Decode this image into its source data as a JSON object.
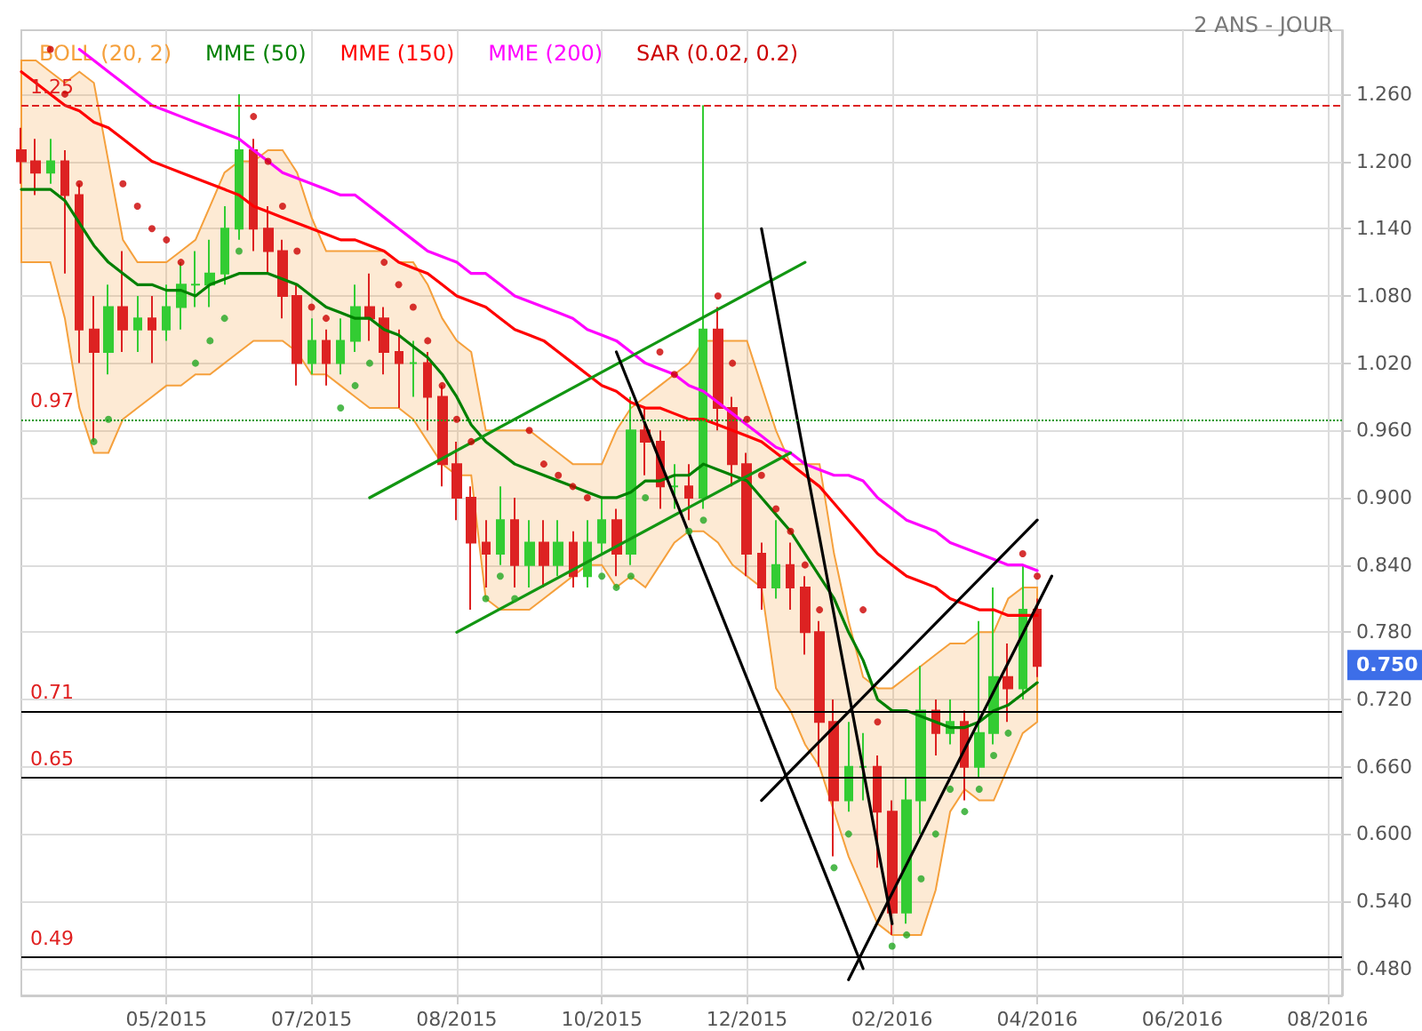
{
  "chart_data": {
    "type": "candlestick",
    "subtitle": "2 ANS - JOUR",
    "categories": [
      null,
      null,
      null,
      null,
      null,
      null,
      null,
      null,
      null,
      null,
      "05/2015",
      null,
      null,
      null,
      null,
      null,
      null,
      null,
      null,
      null,
      "07/2015",
      null,
      null,
      null,
      null,
      null,
      null,
      null,
      null,
      null,
      "08/2015",
      null,
      null,
      null,
      null,
      null,
      null,
      null,
      null,
      null,
      "10/2015",
      null,
      null,
      null,
      null,
      null,
      null,
      null,
      null,
      null,
      "12/2015",
      null,
      null,
      null,
      null,
      null,
      null,
      null,
      null,
      null,
      "02/2016",
      null,
      null,
      null,
      null,
      null,
      null,
      null,
      null,
      null,
      "04/2016",
      null,
      null,
      null,
      null,
      null,
      null,
      null,
      null,
      null,
      "06/2016",
      null,
      null,
      null,
      null,
      null,
      null,
      null,
      null,
      null,
      "08/2016",
      null
    ],
    "ohlc": [
      [
        1.21,
        1.23,
        1.18,
        1.2
      ],
      [
        1.2,
        1.22,
        1.17,
        1.19
      ],
      [
        1.19,
        1.22,
        1.18,
        1.2
      ],
      [
        1.2,
        1.21,
        1.1,
        1.17
      ],
      [
        1.17,
        1.18,
        1.02,
        1.05
      ],
      [
        1.05,
        1.08,
        0.95,
        1.03
      ],
      [
        1.03,
        1.09,
        1.01,
        1.07
      ],
      [
        1.07,
        1.12,
        1.03,
        1.05
      ],
      [
        1.05,
        1.08,
        1.03,
        1.06
      ],
      [
        1.06,
        1.08,
        1.02,
        1.05
      ],
      [
        1.05,
        1.09,
        1.04,
        1.07
      ],
      [
        1.07,
        1.11,
        1.05,
        1.09
      ],
      [
        1.09,
        1.12,
        1.07,
        1.09
      ],
      [
        1.09,
        1.13,
        1.07,
        1.1
      ],
      [
        1.1,
        1.16,
        1.09,
        1.14
      ],
      [
        1.14,
        1.26,
        1.13,
        1.21
      ],
      [
        1.21,
        1.22,
        1.12,
        1.14
      ],
      [
        1.14,
        1.16,
        1.1,
        1.12
      ],
      [
        1.12,
        1.13,
        1.06,
        1.08
      ],
      [
        1.08,
        1.09,
        1.0,
        1.02
      ],
      [
        1.02,
        1.06,
        1.01,
        1.04
      ],
      [
        1.04,
        1.05,
        1.0,
        1.02
      ],
      [
        1.02,
        1.06,
        1.01,
        1.04
      ],
      [
        1.04,
        1.09,
        1.03,
        1.07
      ],
      [
        1.07,
        1.1,
        1.04,
        1.06
      ],
      [
        1.06,
        1.07,
        1.01,
        1.03
      ],
      [
        1.03,
        1.05,
        0.98,
        1.02
      ],
      [
        1.02,
        1.04,
        0.99,
        1.02
      ],
      [
        1.02,
        1.03,
        0.96,
        0.99
      ],
      [
        0.99,
        1.0,
        0.91,
        0.93
      ],
      [
        0.93,
        0.95,
        0.88,
        0.9
      ],
      [
        0.9,
        0.91,
        0.8,
        0.86
      ],
      [
        0.86,
        0.88,
        0.82,
        0.85
      ],
      [
        0.85,
        0.91,
        0.84,
        0.88
      ],
      [
        0.88,
        0.9,
        0.82,
        0.84
      ],
      [
        0.84,
        0.88,
        0.82,
        0.86
      ],
      [
        0.86,
        0.88,
        0.82,
        0.84
      ],
      [
        0.84,
        0.88,
        0.83,
        0.86
      ],
      [
        0.86,
        0.87,
        0.82,
        0.83
      ],
      [
        0.83,
        0.88,
        0.82,
        0.86
      ],
      [
        0.86,
        0.9,
        0.85,
        0.88
      ],
      [
        0.88,
        0.89,
        0.83,
        0.85
      ],
      [
        0.85,
        0.99,
        0.84,
        0.96
      ],
      [
        0.96,
        0.98,
        0.92,
        0.95
      ],
      [
        0.95,
        0.96,
        0.89,
        0.91
      ],
      [
        0.91,
        0.93,
        0.89,
        0.91
      ],
      [
        0.91,
        0.93,
        0.88,
        0.9
      ],
      [
        0.9,
        1.25,
        0.89,
        1.05
      ],
      [
        1.05,
        1.07,
        0.96,
        0.98
      ],
      [
        0.98,
        0.99,
        0.91,
        0.93
      ],
      [
        0.93,
        0.94,
        0.83,
        0.85
      ],
      [
        0.85,
        0.86,
        0.8,
        0.82
      ],
      [
        0.82,
        0.88,
        0.81,
        0.84
      ],
      [
        0.84,
        0.86,
        0.8,
        0.82
      ],
      [
        0.82,
        0.83,
        0.76,
        0.78
      ],
      [
        0.78,
        0.79,
        0.66,
        0.7
      ],
      [
        0.7,
        0.72,
        0.58,
        0.63
      ],
      [
        0.63,
        0.7,
        0.62,
        0.66
      ],
      [
        0.66,
        0.69,
        0.63,
        0.66
      ],
      [
        0.66,
        0.67,
        0.57,
        0.62
      ],
      [
        0.62,
        0.63,
        0.51,
        0.53
      ],
      [
        0.53,
        0.65,
        0.52,
        0.63
      ],
      [
        0.63,
        0.75,
        0.6,
        0.71
      ],
      [
        0.71,
        0.72,
        0.67,
        0.69
      ],
      [
        0.69,
        0.72,
        0.68,
        0.7
      ],
      [
        0.7,
        0.71,
        0.63,
        0.66
      ],
      [
        0.66,
        0.79,
        0.65,
        0.69
      ],
      [
        0.69,
        0.82,
        0.68,
        0.74
      ],
      [
        0.74,
        0.77,
        0.7,
        0.73
      ],
      [
        0.73,
        0.84,
        0.72,
        0.8
      ],
      [
        0.8,
        0.81,
        0.74,
        0.75
      ],
      null,
      null,
      null,
      null,
      null,
      null,
      null,
      null,
      null,
      null,
      null,
      null,
      null,
      null,
      null,
      null,
      null,
      null,
      null,
      null,
      null
    ],
    "colors": [
      "#dd2222",
      "#dd2222",
      "#33cc33",
      "#dd2222",
      "#dd2222",
      "#dd2222",
      "#33cc33",
      "#dd2222",
      "#33cc33",
      "#dd2222",
      "#33cc33",
      "#33cc33",
      "#33cc33",
      "#33cc33",
      "#33cc33",
      "#33cc33",
      "#dd2222",
      "#dd2222",
      "#dd2222",
      "#dd2222",
      "#33cc33",
      "#dd2222",
      "#33cc33",
      "#33cc33",
      "#dd2222",
      "#dd2222",
      "#dd2222",
      "#33cc33",
      "#dd2222",
      "#dd2222",
      "#dd2222",
      "#dd2222",
      "#dd2222",
      "#33cc33",
      "#dd2222",
      "#33cc33",
      "#dd2222",
      "#33cc33",
      "#dd2222",
      "#33cc33",
      "#33cc33",
      "#dd2222",
      "#33cc33",
      "#dd2222",
      "#dd2222",
      "#33cc33",
      "#dd2222",
      "#33cc33",
      "#dd2222",
      "#dd2222",
      "#dd2222",
      "#dd2222",
      "#33cc33",
      "#dd2222",
      "#dd2222",
      "#dd2222",
      "#dd2222",
      "#33cc33",
      "#33cc33",
      "#dd2222",
      "#dd2222",
      "#33cc33",
      "#33cc33",
      "#dd2222",
      "#33cc33",
      "#dd2222",
      "#33cc33",
      "#33cc33",
      "#dd2222",
      "#33cc33",
      "#dd2222",
      null,
      null,
      null,
      null,
      null,
      null,
      null,
      null,
      null,
      null,
      null,
      null,
      null,
      null,
      null,
      null,
      null,
      null,
      null,
      null,
      null
    ],
    "series": [
      {
        "name": "BOLL (20, 2)",
        "type": "line",
        "color": "#f5a03c",
        "values": [
          null,
          null,
          null,
          null,
          null,
          null,
          null,
          null,
          null,
          null,
          null,
          null,
          null,
          null,
          null,
          null,
          null,
          null,
          null,
          null,
          null,
          null,
          null,
          null,
          null,
          null,
          null,
          null,
          null,
          null,
          null,
          null,
          null,
          null,
          null,
          null,
          null,
          null,
          null,
          null,
          null,
          null,
          null,
          null,
          null,
          null,
          null,
          null,
          null,
          null,
          null,
          null,
          null,
          null,
          null,
          null,
          null,
          null,
          null,
          null,
          null,
          null,
          null,
          null,
          null,
          null,
          null,
          null,
          null,
          null,
          null,
          null,
          null,
          null,
          null,
          null,
          null,
          null,
          null,
          null,
          null,
          null,
          null,
          null,
          null,
          null,
          null,
          null,
          null,
          null,
          null,
          null
        ],
        "upper": [
          1.29,
          1.29,
          1.28,
          1.27,
          1.28,
          1.27,
          1.2,
          1.13,
          1.11,
          1.11,
          1.11,
          1.12,
          1.13,
          1.16,
          1.19,
          1.2,
          1.2,
          1.21,
          1.21,
          1.19,
          1.15,
          1.12,
          1.12,
          1.12,
          1.12,
          1.12,
          1.11,
          1.11,
          1.09,
          1.06,
          1.04,
          1.03,
          0.96,
          0.96,
          0.96,
          0.96,
          0.95,
          0.94,
          0.93,
          0.93,
          0.93,
          0.96,
          0.98,
          0.99,
          1.0,
          1.01,
          1.02,
          1.04,
          1.04,
          1.04,
          1.04,
          1.0,
          0.96,
          0.93,
          0.93,
          0.93,
          0.85,
          0.79,
          0.74,
          0.73,
          0.73,
          0.74,
          0.75,
          0.76,
          0.77,
          0.77,
          0.78,
          0.78,
          0.81,
          0.82,
          0.82,
          null,
          null,
          null,
          null,
          null,
          null,
          null,
          null,
          null,
          null,
          null,
          null,
          null,
          null,
          null,
          null,
          null,
          null,
          null,
          null,
          null
        ],
        "lower": [
          1.11,
          1.11,
          1.11,
          1.06,
          0.98,
          0.94,
          0.94,
          0.97,
          0.98,
          0.99,
          1.0,
          1.0,
          1.01,
          1.01,
          1.02,
          1.03,
          1.04,
          1.04,
          1.04,
          1.03,
          1.01,
          1.01,
          1.0,
          0.99,
          0.98,
          0.98,
          0.98,
          0.97,
          0.95,
          0.93,
          0.92,
          0.92,
          0.81,
          0.8,
          0.8,
          0.8,
          0.81,
          0.82,
          0.83,
          0.84,
          0.84,
          0.82,
          0.83,
          0.82,
          0.84,
          0.86,
          0.87,
          0.87,
          0.86,
          0.84,
          0.83,
          0.82,
          0.73,
          0.71,
          0.68,
          0.66,
          0.62,
          0.58,
          0.55,
          0.52,
          0.51,
          0.51,
          0.51,
          0.55,
          0.62,
          0.64,
          0.63,
          0.63,
          0.66,
          0.69,
          0.7,
          null,
          null,
          null,
          null,
          null,
          null,
          null,
          null,
          null,
          null,
          null,
          null,
          null,
          null,
          null,
          null,
          null,
          null,
          null,
          null,
          null
        ]
      },
      {
        "name": "MME (50)",
        "type": "line",
        "color": "#008000",
        "values": [
          1.175,
          1.175,
          1.175,
          1.165,
          1.145,
          1.125,
          1.11,
          1.1,
          1.09,
          1.09,
          1.085,
          1.085,
          1.08,
          1.09,
          1.095,
          1.1,
          1.1,
          1.1,
          1.095,
          1.09,
          1.08,
          1.07,
          1.065,
          1.06,
          1.06,
          1.05,
          1.045,
          1.035,
          1.025,
          1.01,
          0.99,
          0.965,
          0.95,
          0.94,
          0.93,
          0.925,
          0.92,
          0.915,
          0.91,
          0.905,
          0.9,
          0.9,
          0.905,
          0.915,
          0.915,
          0.92,
          0.92,
          0.93,
          0.925,
          0.92,
          0.915,
          0.9,
          0.885,
          0.87,
          0.85,
          0.83,
          0.81,
          0.78,
          0.755,
          0.72,
          0.71,
          0.71,
          0.705,
          0.7,
          0.695,
          0.695,
          0.7,
          0.71,
          0.715,
          0.725,
          0.735,
          null,
          null,
          null,
          null,
          null,
          null,
          null,
          null,
          null,
          null,
          null,
          null,
          null,
          null,
          null,
          null,
          null,
          null,
          null,
          null,
          null
        ]
      },
      {
        "name": "MME (150)",
        "type": "line",
        "color": "#ff0000",
        "values": [
          1.28,
          1.27,
          1.26,
          1.25,
          1.245,
          1.235,
          1.23,
          1.22,
          1.21,
          1.2,
          1.195,
          1.19,
          1.185,
          1.18,
          1.175,
          1.17,
          1.16,
          1.155,
          1.15,
          1.145,
          1.14,
          1.135,
          1.13,
          1.13,
          1.125,
          1.12,
          1.11,
          1.105,
          1.1,
          1.09,
          1.08,
          1.075,
          1.07,
          1.06,
          1.05,
          1.045,
          1.04,
          1.03,
          1.02,
          1.01,
          1.0,
          0.995,
          0.985,
          0.98,
          0.98,
          0.975,
          0.97,
          0.97,
          0.965,
          0.96,
          0.955,
          0.95,
          0.94,
          0.93,
          0.92,
          0.91,
          0.895,
          0.88,
          0.865,
          0.85,
          0.84,
          0.83,
          0.825,
          0.82,
          0.81,
          0.805,
          0.8,
          0.8,
          0.795,
          0.795,
          0.795,
          null,
          null,
          null,
          null,
          null,
          null,
          null,
          null,
          null,
          null,
          null,
          null,
          null,
          null,
          null,
          null,
          null,
          null,
          null,
          null,
          null
        ]
      },
      {
        "name": "MME (200)",
        "type": "line",
        "color": "#ff00ff",
        "values": [
          null,
          null,
          null,
          null,
          1.3,
          1.29,
          1.28,
          1.27,
          1.26,
          1.25,
          1.245,
          1.24,
          1.235,
          1.23,
          1.225,
          1.22,
          1.21,
          1.2,
          1.19,
          1.185,
          1.18,
          1.175,
          1.17,
          1.17,
          1.16,
          1.15,
          1.14,
          1.13,
          1.12,
          1.115,
          1.11,
          1.1,
          1.1,
          1.09,
          1.08,
          1.075,
          1.07,
          1.065,
          1.06,
          1.05,
          1.045,
          1.04,
          1.03,
          1.02,
          1.015,
          1.01,
          1.0,
          0.995,
          0.985,
          0.975,
          0.965,
          0.955,
          0.945,
          0.94,
          0.93,
          0.925,
          0.92,
          0.92,
          0.915,
          0.9,
          0.89,
          0.88,
          0.875,
          0.87,
          0.86,
          0.855,
          0.85,
          0.845,
          0.84,
          0.84,
          0.835,
          null,
          null,
          null,
          null,
          null,
          null,
          null,
          null,
          null,
          null,
          null,
          null,
          null,
          null,
          null,
          null,
          null,
          null,
          null,
          null,
          null
        ]
      },
      {
        "name": "SAR (0.02, 0.2)",
        "type": "scatter",
        "marker": "circle",
        "color": "#cc0000",
        "values": [
          null,
          null,
          1.3,
          1.26,
          1.18,
          0.95,
          0.97,
          1.18,
          1.16,
          1.14,
          1.13,
          1.11,
          1.02,
          1.04,
          1.06,
          1.12,
          1.24,
          1.2,
          1.16,
          1.12,
          1.07,
          1.06,
          0.98,
          1.0,
          1.02,
          1.11,
          1.09,
          1.07,
          1.04,
          1.0,
          0.97,
          0.95,
          0.81,
          0.83,
          0.81,
          0.96,
          0.93,
          0.92,
          0.91,
          0.9,
          0.83,
          0.82,
          0.83,
          0.9,
          1.03,
          1.01,
          0.87,
          0.88,
          1.08,
          1.02,
          0.97,
          0.92,
          0.89,
          0.87,
          0.84,
          0.8,
          0.57,
          0.6,
          0.8,
          0.7,
          0.5,
          0.51,
          0.56,
          0.6,
          0.64,
          0.62,
          0.64,
          0.67,
          0.69,
          0.85,
          0.83,
          null,
          null,
          null,
          null,
          null,
          null,
          null,
          null,
          null,
          null,
          null,
          null,
          null,
          null,
          null,
          null,
          null,
          null,
          null,
          null,
          null
        ],
        "colors": [
          null,
          null,
          "#cc0000",
          "#cc0000",
          "#cc0000",
          "#22a722",
          "#22a722",
          "#cc0000",
          "#cc0000",
          "#cc0000",
          "#cc0000",
          "#cc0000",
          "#22a722",
          "#22a722",
          "#22a722",
          "#22a722",
          "#cc0000",
          "#cc0000",
          "#cc0000",
          "#cc0000",
          "#cc0000",
          "#cc0000",
          "#22a722",
          "#22a722",
          "#22a722",
          "#cc0000",
          "#cc0000",
          "#cc0000",
          "#cc0000",
          "#cc0000",
          "#cc0000",
          "#cc0000",
          "#22a722",
          "#22a722",
          "#22a722",
          "#cc0000",
          "#cc0000",
          "#cc0000",
          "#cc0000",
          "#cc0000",
          "#22a722",
          "#22a722",
          "#22a722",
          "#22a722",
          "#cc0000",
          "#cc0000",
          "#22a722",
          "#22a722",
          "#cc0000",
          "#cc0000",
          "#cc0000",
          "#cc0000",
          "#cc0000",
          "#cc0000",
          "#cc0000",
          "#cc0000",
          "#22a722",
          "#22a722",
          "#cc0000",
          "#cc0000",
          "#22a722",
          "#22a722",
          "#22a722",
          "#22a722",
          "#22a722",
          "#22a722",
          "#22a722",
          "#22a722",
          "#22a722",
          "#cc0000",
          "#cc0000",
          null,
          null,
          null,
          null,
          null,
          null,
          null,
          null,
          null,
          null,
          null,
          null,
          null,
          null,
          null,
          null,
          null,
          null,
          null,
          null,
          null
        ]
      },
      {
        "type": "line",
        "color": "#129612",
        "values": [
          null,
          null,
          null,
          null,
          null,
          null,
          null,
          null,
          null,
          null,
          null,
          null,
          null,
          null,
          null,
          null,
          null,
          null,
          null,
          null,
          null,
          null,
          null,
          null,
          0.9,
          null,
          null,
          null,
          null,
          null,
          null,
          null,
          null,
          null,
          null,
          null,
          null,
          null,
          null,
          null,
          null,
          null,
          null,
          null,
          null,
          null,
          null,
          null,
          null,
          null,
          null,
          null,
          null,
          null,
          1.11,
          null,
          null,
          null,
          null,
          null,
          null,
          null,
          null,
          null,
          null,
          null,
          null,
          null,
          null,
          null,
          null,
          null,
          null,
          null,
          null,
          null,
          null,
          null,
          null,
          null,
          null,
          null,
          null,
          null,
          null,
          null,
          null,
          null,
          null,
          null,
          null,
          null
        ]
      },
      {
        "type": "line",
        "color": "#129612",
        "values": [
          null,
          null,
          null,
          null,
          null,
          null,
          null,
          null,
          null,
          null,
          null,
          null,
          null,
          null,
          null,
          null,
          null,
          null,
          null,
          null,
          null,
          null,
          null,
          null,
          null,
          null,
          null,
          null,
          null,
          null,
          0.78,
          null,
          null,
          null,
          null,
          null,
          null,
          null,
          null,
          null,
          null,
          null,
          null,
          null,
          null,
          null,
          null,
          null,
          null,
          null,
          null,
          null,
          null,
          0.94,
          null,
          null,
          null,
          null,
          null,
          null,
          null,
          null,
          null,
          null,
          null,
          null,
          null,
          null,
          null,
          null,
          null,
          null,
          null,
          null,
          null,
          null,
          null,
          null,
          null,
          null,
          null,
          null,
          null,
          null,
          null,
          null,
          null,
          null,
          null,
          null,
          null,
          null
        ]
      },
      {
        "type": "line",
        "color": "#000000",
        "values": [
          null,
          null,
          null,
          null,
          null,
          null,
          null,
          null,
          null,
          null,
          null,
          null,
          null,
          null,
          null,
          null,
          null,
          null,
          null,
          null,
          null,
          null,
          null,
          null,
          null,
          null,
          null,
          null,
          null,
          null,
          null,
          null,
          null,
          null,
          null,
          null,
          null,
          null,
          null,
          null,
          null,
          null,
          null,
          null,
          null,
          null,
          null,
          null,
          null,
          null,
          null,
          0.63,
          null,
          null,
          null,
          null,
          null,
          null,
          null,
          null,
          null,
          null,
          null,
          null,
          null,
          null,
          null,
          null,
          null,
          null,
          0.88,
          null,
          null,
          null,
          null,
          null,
          null,
          null,
          null,
          null,
          null,
          null,
          null,
          null,
          null,
          null,
          null,
          null,
          null,
          null,
          null,
          null
        ]
      },
      {
        "type": "line",
        "color": "#000000",
        "values": [
          null,
          null,
          null,
          null,
          null,
          null,
          null,
          null,
          null,
          null,
          null,
          null,
          null,
          null,
          null,
          null,
          null,
          null,
          null,
          null,
          null,
          null,
          null,
          null,
          null,
          null,
          null,
          null,
          null,
          null,
          null,
          null,
          null,
          null,
          null,
          null,
          null,
          null,
          null,
          null,
          null,
          null,
          null,
          null,
          null,
          null,
          null,
          null,
          null,
          null,
          null,
          null,
          null,
          null,
          null,
          null,
          null,
          0.47,
          null,
          null,
          null,
          null,
          null,
          null,
          null,
          null,
          null,
          null,
          null,
          null,
          null,
          0.83,
          null,
          null,
          null,
          null,
          null,
          null,
          null,
          null,
          null,
          null,
          null,
          null,
          null,
          null,
          null,
          null,
          null,
          null,
          null,
          null
        ]
      },
      {
        "type": "line",
        "color": "#000000",
        "values": [
          null,
          null,
          null,
          null,
          null,
          null,
          null,
          null,
          null,
          null,
          null,
          null,
          null,
          null,
          null,
          null,
          null,
          null,
          null,
          null,
          null,
          null,
          null,
          null,
          null,
          null,
          null,
          null,
          null,
          null,
          null,
          null,
          null,
          null,
          null,
          null,
          null,
          null,
          null,
          null,
          null,
          1.03,
          null,
          null,
          null,
          null,
          null,
          null,
          null,
          null,
          null,
          null,
          null,
          null,
          null,
          null,
          null,
          null,
          0.48,
          null,
          null,
          null,
          null,
          null,
          null,
          null,
          null,
          null,
          null,
          null,
          null,
          null,
          null,
          null,
          null,
          null,
          null,
          null,
          null,
          null,
          null,
          null,
          null,
          null,
          null,
          null,
          null,
          null,
          null,
          null,
          null,
          null
        ]
      },
      {
        "type": "line",
        "color": "#000000",
        "values": [
          null,
          null,
          null,
          null,
          null,
          null,
          null,
          null,
          null,
          null,
          null,
          null,
          null,
          null,
          null,
          null,
          null,
          null,
          null,
          null,
          null,
          null,
          null,
          null,
          null,
          null,
          null,
          null,
          null,
          null,
          null,
          null,
          null,
          null,
          null,
          null,
          null,
          null,
          null,
          null,
          null,
          null,
          null,
          null,
          null,
          null,
          null,
          null,
          null,
          null,
          null,
          1.14,
          null,
          null,
          null,
          null,
          null,
          null,
          null,
          null,
          0.52,
          null,
          null,
          null,
          null,
          null,
          null,
          null,
          null,
          null,
          null,
          null,
          null,
          null,
          null,
          null,
          null,
          null,
          null,
          null,
          null,
          null,
          null,
          null,
          null,
          null,
          null,
          null,
          null,
          null,
          null,
          null
        ]
      }
    ],
    "ylim": [
      0.456,
      1.317
    ],
    "yticks": [
      {
        "value": 0.48,
        "label": "0.480"
      },
      {
        "value": 0.54,
        "label": "0.540"
      },
      {
        "value": 0.6,
        "label": "0.600"
      },
      {
        "value": 0.66,
        "label": "0.660"
      },
      {
        "value": 0.72,
        "label": "0.720"
      },
      {
        "value": 0.78,
        "label": "0.780"
      },
      {
        "value": 0.84,
        "label": "0.840"
      },
      {
        "value": 0.9,
        "label": "0.900"
      },
      {
        "value": 0.96,
        "label": "0.960"
      },
      {
        "value": 1.02,
        "label": "1.020"
      },
      {
        "value": 1.08,
        "label": "1.080"
      },
      {
        "value": 1.14,
        "label": "1.140"
      },
      {
        "value": 1.2,
        "label": "1.200"
      },
      {
        "value": 1.26,
        "label": "1.260"
      }
    ],
    "ref_lines": [
      {
        "axis": "y",
        "value": 1.25,
        "label": "1.25",
        "color": "#dd2222",
        "line_style": "dashed"
      },
      {
        "axis": "y",
        "value": 0.97,
        "label": "0.97",
        "color": "#119911",
        "line_style": "dotted"
      },
      {
        "axis": "y",
        "value": 0.71,
        "label": "0.71",
        "color": "#000000",
        "line_style": "solid"
      },
      {
        "axis": "y",
        "value": 0.65,
        "label": "0.65",
        "color": "#000000",
        "line_style": "solid"
      },
      {
        "axis": "y",
        "value": 0.49,
        "label": "0.49",
        "color": "#000000",
        "line_style": "solid"
      }
    ],
    "annotations": [
      "0.750"
    ],
    "marker": "none",
    "grid": true,
    "legend": "top left"
  }
}
